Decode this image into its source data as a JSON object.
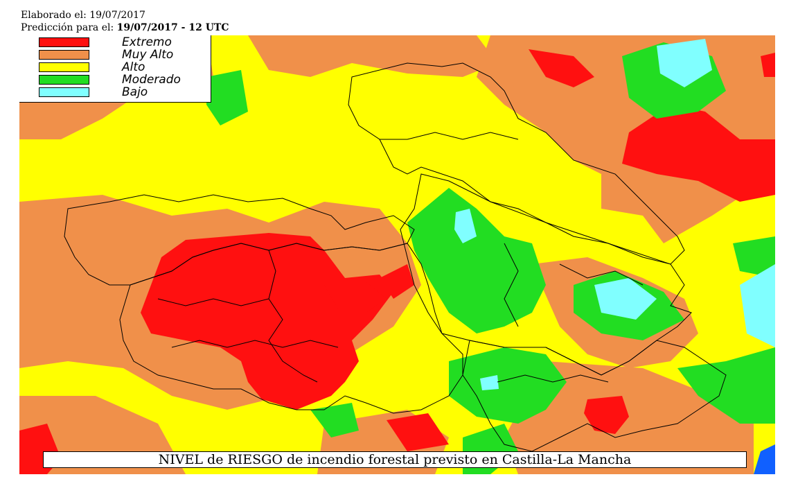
{
  "header": {
    "elaborado_label": "Elaborado el:",
    "elaborado_date": "19/07/2017",
    "prediccion_label": "Predicción para el:",
    "prediccion_value": "19/07/2017 - 12 UTC"
  },
  "legend": [
    {
      "label": "Extremo",
      "color": "#ff1010"
    },
    {
      "label": "Muy Alto",
      "color": "#f0904a"
    },
    {
      "label": "Alto",
      "color": "#ffff00"
    },
    {
      "label": "Moderado",
      "color": "#22dd22"
    },
    {
      "label": "Bajo",
      "color": "#80ffff"
    }
  ],
  "caption": "NIVEL de RIESGO de incendio forestal previsto en Castilla-La Mancha",
  "colors": {
    "extremo": "#ff1010",
    "muy_alto": "#f0904a",
    "alto": "#ffff00",
    "moderado": "#22dd22",
    "bajo": "#80ffff",
    "sea": "#1060ff",
    "border": "#000000"
  }
}
